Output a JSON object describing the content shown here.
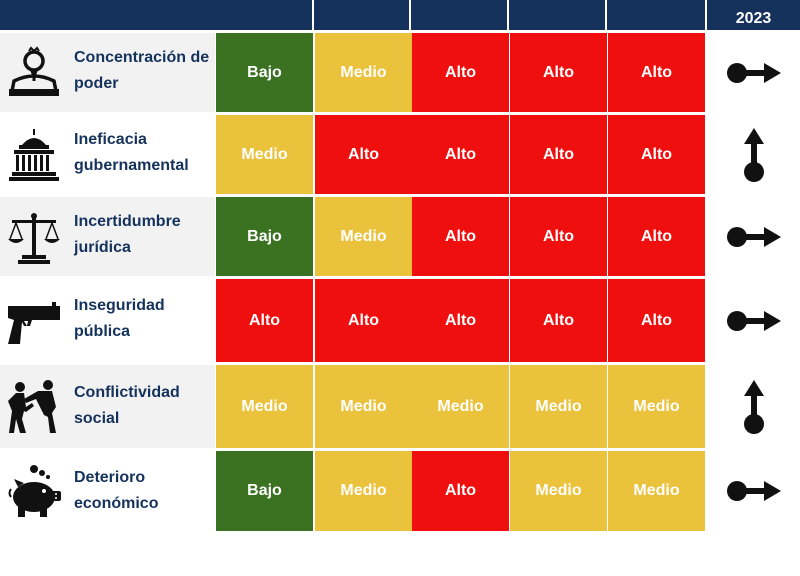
{
  "header": {
    "last_label": "2023"
  },
  "colors": {
    "Bajo": "#3a7222",
    "Medio": "#ebc23c",
    "Alto": "#f00f0f",
    "header": "#15325c",
    "label": "#15325c"
  },
  "rows": [
    {
      "label": "Concentración de poder",
      "icon": "crowned-person-icon",
      "values": [
        "Bajo",
        "Medio",
        "Alto",
        "Alto",
        "Alto"
      ],
      "trend": "right"
    },
    {
      "label": "Ineficacia gubernamental",
      "icon": "capitol-building-icon",
      "values": [
        "Medio",
        "Alto",
        "Alto",
        "Alto",
        "Alto"
      ],
      "trend": "up"
    },
    {
      "label": "Incertidumbre jurídica",
      "icon": "scales-icon",
      "values": [
        "Bajo",
        "Medio",
        "Alto",
        "Alto",
        "Alto"
      ],
      "trend": "right"
    },
    {
      "label": "Inseguridad pública",
      "icon": "pistol-icon",
      "values": [
        "Alto",
        "Alto",
        "Alto",
        "Alto",
        "Alto"
      ],
      "trend": "right"
    },
    {
      "label": "Conflictividad social",
      "icon": "fighting-people-icon",
      "values": [
        "Medio",
        "Medio",
        "Medio",
        "Medio",
        "Medio"
      ],
      "trend": "up"
    },
    {
      "label": "Deterioro económico",
      "icon": "piggy-bank-icon",
      "values": [
        "Bajo",
        "Medio",
        "Alto",
        "Medio",
        "Medio"
      ],
      "trend": "right"
    }
  ]
}
